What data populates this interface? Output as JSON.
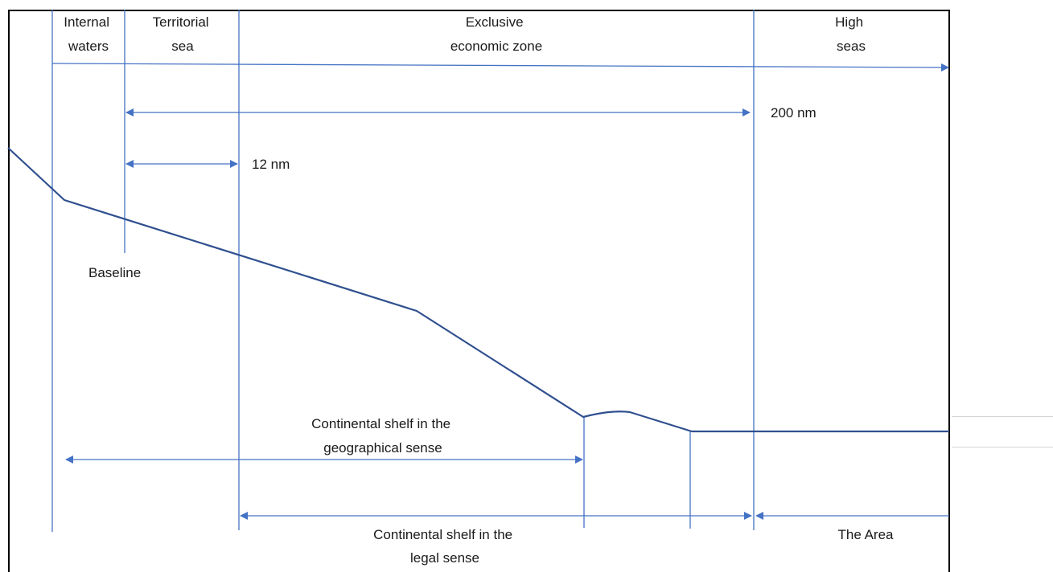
{
  "zones": {
    "internal_waters": [
      "Internal",
      "waters"
    ],
    "territorial_sea": [
      "Territorial",
      "sea"
    ],
    "eez": [
      "Exclusive",
      "economic zone"
    ],
    "high_seas": [
      "High",
      "seas"
    ]
  },
  "distances": {
    "nm200": "200 nm",
    "nm12": "12 nm"
  },
  "labels": {
    "baseline": "Baseline",
    "shelf_geo": [
      "Continental shelf in the",
      "geographical sense"
    ],
    "shelf_legal": [
      "Continental shelf in the",
      "legal sense"
    ],
    "area": "The Area"
  },
  "colors": {
    "line": "#4472c4",
    "seabed": "#2f4f8f",
    "frame": "#000000",
    "text": "#1a1a1a"
  }
}
